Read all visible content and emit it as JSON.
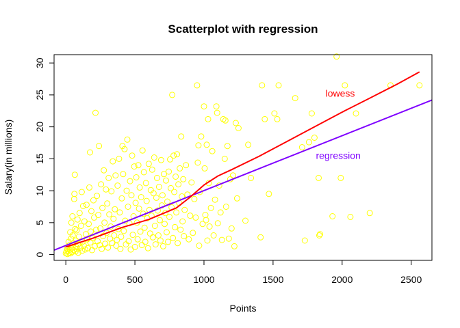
{
  "chart_data": {
    "type": "scatter",
    "title": "Scatterplot with regression",
    "xlabel": "Points",
    "ylabel": "Salary(in millions)",
    "xlim": [
      -85,
      2650
    ],
    "ylim": [
      -0.9,
      31.3
    ],
    "xticks": [
      0,
      500,
      1000,
      1500,
      2000,
      2500
    ],
    "yticks": [
      0,
      5,
      10,
      15,
      20,
      25,
      30
    ],
    "grid": false,
    "colors": {
      "points": "#ffff00",
      "lowess": "#ff0000",
      "regression": "#7f00ff",
      "axis": "#000000"
    },
    "points": [
      [
        0,
        0.2
      ],
      [
        5,
        0.5
      ],
      [
        10,
        0.9
      ],
      [
        12,
        0.1
      ],
      [
        15,
        1.2
      ],
      [
        18,
        0.6
      ],
      [
        20,
        2.0
      ],
      [
        25,
        0.3
      ],
      [
        28,
        1.5
      ],
      [
        30,
        0.8
      ],
      [
        32,
        3.5
      ],
      [
        35,
        0.2
      ],
      [
        38,
        2.5
      ],
      [
        40,
        5.0
      ],
      [
        42,
        1.0
      ],
      [
        45,
        0.4
      ],
      [
        48,
        6.0
      ],
      [
        50,
        3.0
      ],
      [
        55,
        1.8
      ],
      [
        58,
        0.7
      ],
      [
        60,
        8.7
      ],
      [
        62,
        9.5
      ],
      [
        65,
        12.5
      ],
      [
        68,
        4.0
      ],
      [
        70,
        0.5
      ],
      [
        72,
        2.2
      ],
      [
        75,
        1.2
      ],
      [
        78,
        3.8
      ],
      [
        80,
        0.9
      ],
      [
        85,
        5.5
      ],
      [
        88,
        1.6
      ],
      [
        90,
        0.3
      ],
      [
        95,
        2.8
      ],
      [
        100,
        6.5
      ],
      [
        105,
        1.1
      ],
      [
        110,
        4.5
      ],
      [
        115,
        9.8
      ],
      [
        118,
        0.6
      ],
      [
        120,
        2.0
      ],
      [
        125,
        7.6
      ],
      [
        130,
        1.4
      ],
      [
        135,
        5.2
      ],
      [
        140,
        0.8
      ],
      [
        145,
        3.2
      ],
      [
        150,
        7.8
      ],
      [
        155,
        2.4
      ],
      [
        160,
        1.0
      ],
      [
        165,
        4.8
      ],
      [
        170,
        10.5
      ],
      [
        175,
        16.0
      ],
      [
        178,
        1.9
      ],
      [
        180,
        3.6
      ],
      [
        185,
        6.8
      ],
      [
        190,
        0.7
      ],
      [
        195,
        2.6
      ],
      [
        200,
        8.5
      ],
      [
        205,
        5.8
      ],
      [
        210,
        1.3
      ],
      [
        215,
        22.2
      ],
      [
        220,
        3.9
      ],
      [
        225,
        9.2
      ],
      [
        230,
        2.1
      ],
      [
        235,
        6.2
      ],
      [
        240,
        17.0
      ],
      [
        245,
        1.5
      ],
      [
        250,
        4.1
      ],
      [
        255,
        11.0
      ],
      [
        260,
        0.9
      ],
      [
        265,
        7.3
      ],
      [
        270,
        2.9
      ],
      [
        275,
        13.2
      ],
      [
        280,
        5.0
      ],
      [
        285,
        1.7
      ],
      [
        290,
        10.2
      ],
      [
        295,
        3.4
      ],
      [
        300,
        8.0
      ],
      [
        305,
        1.1
      ],
      [
        310,
        12.0
      ],
      [
        315,
        6.3
      ],
      [
        320,
        2.5
      ],
      [
        325,
        4.4
      ],
      [
        330,
        9.9
      ],
      [
        335,
        1.8
      ],
      [
        340,
        14.6
      ],
      [
        345,
        5.6
      ],
      [
        350,
        3.0
      ],
      [
        355,
        7.1
      ],
      [
        360,
        12.4
      ],
      [
        365,
        1.4
      ],
      [
        370,
        2.3
      ],
      [
        375,
        10.8
      ],
      [
        380,
        4.0
      ],
      [
        385,
        15.0
      ],
      [
        390,
        6.6
      ],
      [
        395,
        0.9
      ],
      [
        400,
        2.8
      ],
      [
        405,
        8.8
      ],
      [
        410,
        17.0
      ],
      [
        415,
        12.6
      ],
      [
        420,
        3.7
      ],
      [
        425,
        16.5
      ],
      [
        430,
        5.3
      ],
      [
        435,
        1.6
      ],
      [
        440,
        10.0
      ],
      [
        445,
        18.0
      ],
      [
        450,
        7.5
      ],
      [
        455,
        2.1
      ],
      [
        460,
        4.9
      ],
      [
        465,
        11.5
      ],
      [
        470,
        0.8
      ],
      [
        475,
        9.3
      ],
      [
        480,
        15.5
      ],
      [
        485,
        3.1
      ],
      [
        490,
        6.0
      ],
      [
        495,
        13.8
      ],
      [
        500,
        1.2
      ],
      [
        505,
        8.1
      ],
      [
        510,
        12.1
      ],
      [
        515,
        5.0
      ],
      [
        520,
        2.4
      ],
      [
        525,
        14.0
      ],
      [
        530,
        7.2
      ],
      [
        535,
        10.5
      ],
      [
        540,
        3.6
      ],
      [
        545,
        9.0
      ],
      [
        550,
        1.5
      ],
      [
        555,
        16.3
      ],
      [
        560,
        6.4
      ],
      [
        565,
        12.9
      ],
      [
        570,
        4.2
      ],
      [
        575,
        2.0
      ],
      [
        580,
        11.2
      ],
      [
        585,
        8.4
      ],
      [
        590,
        5.7
      ],
      [
        595,
        1.0
      ],
      [
        600,
        14.2
      ],
      [
        605,
        7.0
      ],
      [
        610,
        3.3
      ],
      [
        615,
        10.1
      ],
      [
        620,
        6.1
      ],
      [
        625,
        13.3
      ],
      [
        630,
        2.7
      ],
      [
        635,
        9.6
      ],
      [
        640,
        15.2
      ],
      [
        645,
        4.5
      ],
      [
        650,
        1.6
      ],
      [
        655,
        8.9
      ],
      [
        660,
        12.0
      ],
      [
        665,
        6.9
      ],
      [
        670,
        3.0
      ],
      [
        675,
        10.6
      ],
      [
        680,
        5.4
      ],
      [
        685,
        2.2
      ],
      [
        690,
        14.8
      ],
      [
        695,
        7.7
      ],
      [
        700,
        9.3
      ],
      [
        705,
        1.3
      ],
      [
        710,
        12.6
      ],
      [
        715,
        4.8
      ],
      [
        720,
        6.5
      ],
      [
        725,
        11.6
      ],
      [
        730,
        3.5
      ],
      [
        735,
        8.3
      ],
      [
        740,
        2.0
      ],
      [
        745,
        13.0
      ],
      [
        750,
        5.9
      ],
      [
        755,
        14.9
      ],
      [
        760,
        10.4
      ],
      [
        765,
        7.4
      ],
      [
        770,
        25.0
      ],
      [
        775,
        2.6
      ],
      [
        780,
        15.5
      ],
      [
        785,
        9.8
      ],
      [
        790,
        4.3
      ],
      [
        795,
        12.2
      ],
      [
        800,
        6.6
      ],
      [
        805,
        15.7
      ],
      [
        810,
        1.8
      ],
      [
        815,
        11.0
      ],
      [
        820,
        8.1
      ],
      [
        825,
        13.5
      ],
      [
        830,
        3.9
      ],
      [
        835,
        18.5
      ],
      [
        840,
        9.1
      ],
      [
        845,
        5.2
      ],
      [
        850,
        11.8
      ],
      [
        855,
        2.9
      ],
      [
        860,
        7.0
      ],
      [
        870,
        14.0
      ],
      [
        880,
        9.4
      ],
      [
        890,
        2.4
      ],
      [
        900,
        6.1
      ],
      [
        910,
        11.3
      ],
      [
        920,
        3.4
      ],
      [
        930,
        8.7
      ],
      [
        940,
        5.8
      ],
      [
        950,
        26.5
      ],
      [
        955,
        14.4
      ],
      [
        960,
        17.1
      ],
      [
        965,
        1.4
      ],
      [
        970,
        9.8
      ],
      [
        980,
        18.5
      ],
      [
        990,
        4.8
      ],
      [
        1000,
        23.2
      ],
      [
        1005,
        13.5
      ],
      [
        1010,
        6.2
      ],
      [
        1015,
        5.4
      ],
      [
        1020,
        17.2
      ],
      [
        1025,
        2.2
      ],
      [
        1030,
        21.2
      ],
      [
        1035,
        11.2
      ],
      [
        1040,
        4.4
      ],
      [
        1050,
        7.3
      ],
      [
        1060,
        16.2
      ],
      [
        1070,
        3.0
      ],
      [
        1080,
        8.6
      ],
      [
        1090,
        23.2
      ],
      [
        1095,
        22.2
      ],
      [
        1100,
        4.9
      ],
      [
        1110,
        10.8
      ],
      [
        1120,
        6.6
      ],
      [
        1130,
        2.3
      ],
      [
        1140,
        21.2
      ],
      [
        1150,
        15.0
      ],
      [
        1155,
        21.0
      ],
      [
        1160,
        7.5
      ],
      [
        1170,
        17.0
      ],
      [
        1180,
        2.5
      ],
      [
        1190,
        11.8
      ],
      [
        1200,
        4.1
      ],
      [
        1210,
        12.4
      ],
      [
        1220,
        1.3
      ],
      [
        1230,
        20.6
      ],
      [
        1240,
        8.8
      ],
      [
        1250,
        19.8
      ],
      [
        1300,
        5.3
      ],
      [
        1320,
        17.2
      ],
      [
        1340,
        12.0
      ],
      [
        1410,
        2.7
      ],
      [
        1420,
        26.5
      ],
      [
        1440,
        21.2
      ],
      [
        1470,
        9.5
      ],
      [
        1510,
        22.1
      ],
      [
        1530,
        21.2
      ],
      [
        1540,
        26.5
      ],
      [
        1660,
        24.5
      ],
      [
        1710,
        16.8
      ],
      [
        1730,
        2.2
      ],
      [
        1760,
        17.6
      ],
      [
        1780,
        22.1
      ],
      [
        1800,
        18.3
      ],
      [
        1830,
        12.0
      ],
      [
        1835,
        3.0
      ],
      [
        1840,
        3.2
      ],
      [
        1930,
        6.0
      ],
      [
        1960,
        31.0
      ],
      [
        1990,
        12.0
      ],
      [
        2020,
        26.5
      ],
      [
        2060,
        5.9
      ],
      [
        2100,
        22.1
      ],
      [
        2200,
        6.5
      ],
      [
        2350,
        26.5
      ],
      [
        2560,
        26.5
      ]
    ],
    "lowess": {
      "name": "lowess",
      "x": [
        0,
        200,
        400,
        600,
        800,
        900,
        1000,
        1100,
        1200,
        1400,
        1600,
        1800,
        2000,
        2200,
        2400,
        2560
      ],
      "y": [
        1.2,
        2.6,
        4.2,
        5.5,
        7.3,
        9.0,
        10.9,
        12.3,
        13.3,
        15.4,
        17.7,
        20.0,
        22.3,
        24.5,
        26.7,
        28.6
      ]
    },
    "regression": {
      "name": "regression",
      "x": [
        -85,
        2650
      ],
      "y": [
        0.7,
        24.2
      ]
    },
    "annotations": [
      {
        "text": "lowess",
        "x": 1880,
        "y": 24.7,
        "color": "#ff0000"
      },
      {
        "text": "regression",
        "x": 1810,
        "y": 15.0,
        "color": "#7f00ff"
      }
    ]
  }
}
